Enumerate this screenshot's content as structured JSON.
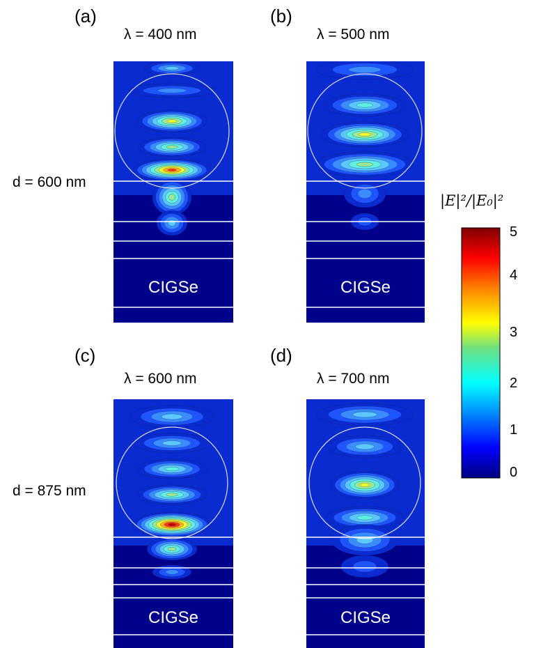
{
  "panels": [
    {
      "letter": "(a)",
      "wavelength": "λ = 400 nm",
      "material": "CIGSe"
    },
    {
      "letter": "(b)",
      "wavelength": "λ = 500 nm",
      "material": "CIGSe"
    },
    {
      "letter": "(c)",
      "wavelength": "λ = 600 nm",
      "material": "CIGSe"
    },
    {
      "letter": "(d)",
      "wavelength": "λ = 700 nm",
      "material": "CIGSe"
    }
  ],
  "rows": [
    {
      "label": "d = 600 nm"
    },
    {
      "label": "d = 875 nm"
    }
  ],
  "colorbar": {
    "title": "|E|²/|E₀|²",
    "ticks": [
      "5",
      "4",
      "3",
      "2",
      "1",
      "0"
    ],
    "colors": [
      "#000080",
      "#0000ff",
      "#00a0ff",
      "#00ffff",
      "#70e080",
      "#ffff00",
      "#ff8000",
      "#ff0000",
      "#800000"
    ]
  }
}
